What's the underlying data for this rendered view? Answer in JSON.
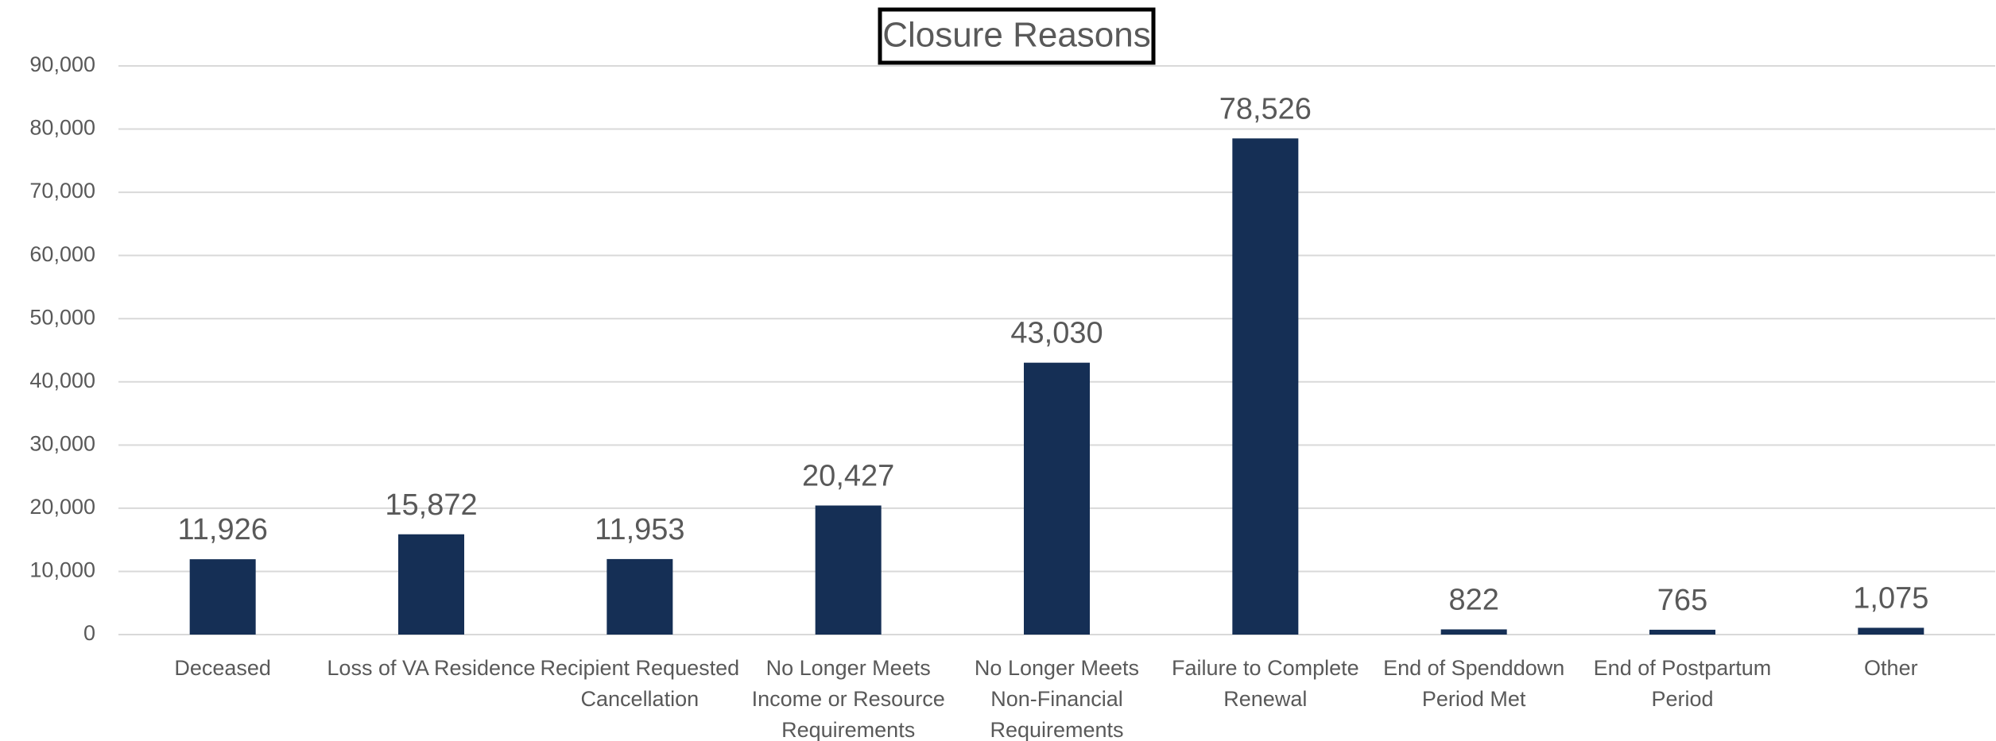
{
  "chart_data": {
    "type": "bar",
    "title": "Closure Reasons",
    "categories": [
      "Deceased",
      "Loss of VA Residence",
      "Recipient Requested Cancellation",
      "No Longer Meets Income or Resource Requirements",
      "No Longer Meets Non-Financial Requirements",
      "Failure to Complete Renewal",
      "End of Spenddown Period Met",
      "End of Postpartum Period",
      "Other"
    ],
    "values": [
      11926,
      15872,
      11953,
      20427,
      43030,
      78526,
      822,
      765,
      1075
    ],
    "value_labels": [
      "11,926",
      "15,872",
      "11,953",
      "20,427",
      "43,030",
      "78,526",
      "822",
      "765",
      "1,075"
    ],
    "color": "#152f55",
    "ylim": [
      0,
      90000
    ],
    "yticks": [
      0,
      {
        "value": 10000,
        "label": "10,000"
      },
      {
        "value": 20000,
        "label": "20,000"
      },
      {
        "value": 30000,
        "label": "30,000"
      },
      {
        "value": 40000,
        "label": "40,000"
      },
      {
        "value": 50000,
        "label": "50,000"
      },
      {
        "value": 60000,
        "label": "60,000"
      },
      {
        "value": 70000,
        "label": "70,000"
      },
      {
        "value": 80000,
        "label": "80,000"
      },
      {
        "value": 90000,
        "label": "90,000"
      }
    ],
    "grid": true
  }
}
